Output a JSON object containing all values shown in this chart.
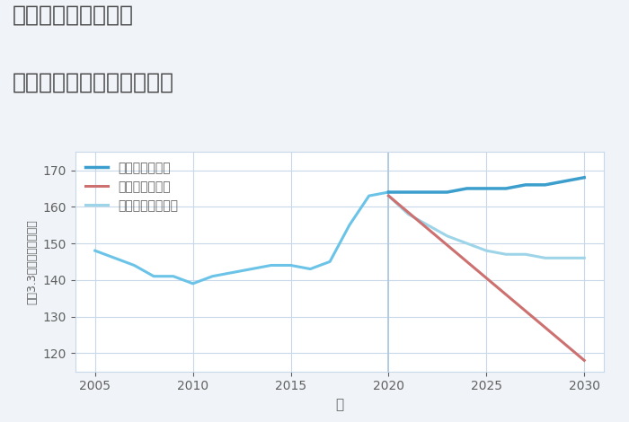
{
  "title_line1": "神奈川県相模原駅の",
  "title_line2": "中古マンションの価格推移",
  "xlabel": "年",
  "ylabel": "坪（3.3㎡）単価（万円）",
  "ylim": [
    115,
    175
  ],
  "xlim": [
    2004,
    2031
  ],
  "yticks": [
    120,
    130,
    140,
    150,
    160,
    170
  ],
  "xticks": [
    2005,
    2010,
    2015,
    2020,
    2025,
    2030
  ],
  "bg_color": "#f0f4f8",
  "plot_bg_color": "#ffffff",
  "grid_color": "#c8d8e8",
  "historical": {
    "years": [
      2005,
      2006,
      2007,
      2008,
      2009,
      2010,
      2011,
      2012,
      2013,
      2014,
      2015,
      2016,
      2017,
      2018,
      2019,
      2020
    ],
    "values": [
      148,
      146,
      144,
      141,
      141,
      139,
      141,
      142,
      143,
      144,
      144,
      143,
      145,
      155,
      163,
      164
    ],
    "color": "#6bc4e8",
    "linewidth": 2.2
  },
  "good": {
    "years": [
      2020,
      2021,
      2022,
      2023,
      2024,
      2025,
      2026,
      2027,
      2028,
      2029,
      2030
    ],
    "values": [
      164,
      164,
      164,
      164,
      165,
      165,
      165,
      166,
      166,
      167,
      168
    ],
    "color": "#3b9ecc",
    "linewidth": 2.5,
    "label": "グッドシナリオ"
  },
  "bad": {
    "years": [
      2020,
      2030
    ],
    "values": [
      163,
      118
    ],
    "color": "#cc7070",
    "linewidth": 2.2,
    "label": "バッドシナリオ"
  },
  "normal": {
    "years": [
      2020,
      2021,
      2022,
      2023,
      2024,
      2025,
      2026,
      2027,
      2028,
      2029,
      2030
    ],
    "values": [
      163,
      158,
      155,
      152,
      150,
      148,
      147,
      147,
      146,
      146,
      146
    ],
    "color": "#9dd4e8",
    "linewidth": 2.2,
    "label": "ノーマルシナリオ"
  },
  "vline_x": 2020,
  "vline_color": "#aac8e0",
  "title_color": "#404040",
  "axis_color": "#606060",
  "legend_fontsize": 10,
  "title_fontsize": 18
}
